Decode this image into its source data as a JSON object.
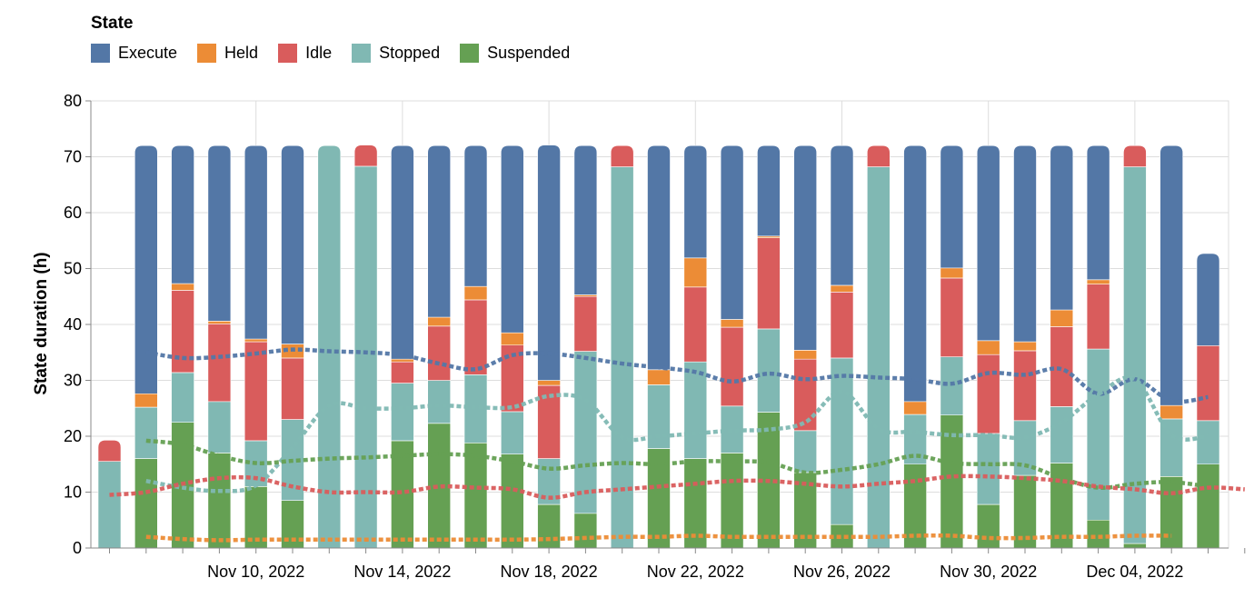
{
  "legend": {
    "title": "State",
    "items": [
      {
        "label": "Execute",
        "color": "#5377a6"
      },
      {
        "label": "Held",
        "color": "#ec8c36"
      },
      {
        "label": "Idle",
        "color": "#d95c5c"
      },
      {
        "label": "Stopped",
        "color": "#80b8b3"
      },
      {
        "label": "Suspended",
        "color": "#65a053"
      }
    ]
  },
  "chart_data": {
    "type": "bar",
    "stacked": true,
    "ylabel": "State duration (h)",
    "xlabel": "",
    "ylim": [
      0,
      80
    ],
    "yticks": [
      0,
      10,
      20,
      30,
      40,
      50,
      60,
      70,
      80
    ],
    "grid": true,
    "legend_position": "top-left",
    "x_tick_labels": [
      "Nov 10, 2022",
      "Nov 14, 2022",
      "Nov 18, 2022",
      "Nov 22, 2022",
      "Nov 26, 2022",
      "Nov 30, 2022",
      "Dec 04, 2022"
    ],
    "x_tick_dates": [
      "2022-11-10",
      "2022-11-14",
      "2022-11-18",
      "2022-11-22",
      "2022-11-26",
      "2022-11-30",
      "2022-12-04"
    ],
    "categories": [
      "2022-11-06",
      "2022-11-07",
      "2022-11-08",
      "2022-11-09",
      "2022-11-10",
      "2022-11-11",
      "2022-11-12",
      "2022-11-13",
      "2022-11-14",
      "2022-11-15",
      "2022-11-16",
      "2022-11-17",
      "2022-11-18",
      "2022-11-19",
      "2022-11-20",
      "2022-11-21",
      "2022-11-22",
      "2022-11-23",
      "2022-11-24",
      "2022-11-25",
      "2022-11-26",
      "2022-11-27",
      "2022-11-28",
      "2022-11-29",
      "2022-11-30",
      "2022-12-01",
      "2022-12-02",
      "2022-12-03",
      "2022-12-04",
      "2022-12-05",
      "2022-12-06",
      "2022-12-07"
    ],
    "series": [
      {
        "name": "Suspended",
        "color": "#65a053",
        "values": [
          0,
          16,
          22.5,
          17,
          11,
          8.5,
          0,
          0,
          19.2,
          22.3,
          18.8,
          16.8,
          7.8,
          6.2,
          0,
          17.8,
          16,
          17,
          24.3,
          13.5,
          4.2,
          0,
          15,
          23.8,
          7.8,
          13,
          15.2,
          5,
          0.8,
          12.8,
          15,
          0
        ]
      },
      {
        "name": "Stopped",
        "color": "#80b8b3",
        "values": [
          15.5,
          9.2,
          8.9,
          9.2,
          8.2,
          14.5,
          72,
          68.3,
          10.3,
          7.7,
          12.2,
          7.6,
          8.2,
          29,
          68.2,
          11.4,
          17.3,
          8.4,
          14.9,
          7.5,
          29.8,
          68.2,
          8.9,
          10.4,
          12.7,
          9.8,
          10.1,
          30.6,
          67.4,
          10.3,
          7.8,
          0
        ]
      },
      {
        "name": "Idle",
        "color": "#d95c5c",
        "values": [
          3.8,
          0,
          14.7,
          13.9,
          17.7,
          11,
          0,
          3.8,
          3.8,
          9.7,
          13.4,
          11.9,
          13.1,
          9.8,
          3.8,
          0,
          13.4,
          14.1,
          16.3,
          12.8,
          11.8,
          3.8,
          0,
          14.1,
          14.1,
          12.5,
          14.3,
          11.6,
          3.8,
          0,
          13.4,
          0
        ]
      },
      {
        "name": "Held",
        "color": "#ec8c36",
        "values": [
          0,
          2.4,
          1.2,
          0.5,
          0.5,
          2.5,
          0,
          0,
          0.5,
          1.6,
          2.4,
          2.2,
          0.9,
          0.3,
          0,
          2.7,
          5.2,
          1.4,
          0.3,
          1.6,
          1.2,
          0,
          2.3,
          1.8,
          2.5,
          1.6,
          3,
          0.8,
          0,
          2.4,
          0,
          0
        ]
      },
      {
        "name": "Execute",
        "color": "#5377a6",
        "values": [
          0,
          44.4,
          24.7,
          31.4,
          34.6,
          35.5,
          0,
          0,
          38.2,
          30.7,
          25.2,
          33.5,
          42.1,
          26.7,
          0,
          40.1,
          20.1,
          31.1,
          16.2,
          36.6,
          25,
          0,
          45.8,
          21.9,
          34.9,
          35.1,
          29.4,
          24,
          0,
          46.5,
          16.5,
          0
        ]
      }
    ],
    "trend_lines": [
      {
        "name": "Execute",
        "color": "#5377a6",
        "x": [
          "2022-11-07",
          "2022-11-08",
          "2022-11-09",
          "2022-11-10",
          "2022-11-11",
          "2022-11-12",
          "2022-11-13",
          "2022-11-14",
          "2022-11-15",
          "2022-11-16",
          "2022-11-17",
          "2022-11-18",
          "2022-11-19",
          "2022-11-20",
          "2022-11-21",
          "2022-11-22",
          "2022-11-23",
          "2022-11-24",
          "2022-11-25",
          "2022-11-26",
          "2022-11-27",
          "2022-11-28",
          "2022-11-29",
          "2022-11-30",
          "2022-12-01",
          "2022-12-02",
          "2022-12-03",
          "2022-12-04",
          "2022-12-05",
          "2022-12-06"
        ],
        "values": [
          35,
          34,
          34.2,
          34.8,
          35.5,
          35.2,
          35,
          34.5,
          33,
          32,
          34.5,
          34.8,
          34,
          33,
          32.3,
          31.5,
          29.8,
          31.2,
          30.2,
          30.8,
          30.5,
          30.2,
          29.4,
          31.3,
          31,
          32,
          27.6,
          30.2,
          26.3,
          27
        ]
      },
      {
        "name": "Stopped",
        "color": "#80b8b3",
        "x": [
          "2022-11-07",
          "2022-11-08",
          "2022-11-09",
          "2022-11-10",
          "2022-11-11",
          "2022-11-12",
          "2022-11-13",
          "2022-11-14",
          "2022-11-15",
          "2022-11-16",
          "2022-11-17",
          "2022-11-18",
          "2022-11-19",
          "2022-11-20",
          "2022-11-21",
          "2022-11-22",
          "2022-11-23",
          "2022-11-24",
          "2022-11-25",
          "2022-11-26",
          "2022-11-27",
          "2022-11-28",
          "2022-11-29",
          "2022-11-30",
          "2022-12-01",
          "2022-12-02",
          "2022-12-03",
          "2022-12-04",
          "2022-12-05",
          "2022-12-06"
        ],
        "values": [
          12,
          10.8,
          10.2,
          11.2,
          18,
          25.5,
          25,
          25,
          25.5,
          25.2,
          25.2,
          27.2,
          26.5,
          19.8,
          20,
          20.5,
          21,
          21.2,
          22.5,
          28,
          21.3,
          20.8,
          20.2,
          20.2,
          19.8,
          22.5,
          27.5,
          30.2,
          20.2,
          20
        ]
      },
      {
        "name": "Suspended",
        "color": "#65a053",
        "x": [
          "2022-11-07",
          "2022-11-08",
          "2022-11-09",
          "2022-11-10",
          "2022-11-11",
          "2022-11-12",
          "2022-11-13",
          "2022-11-14",
          "2022-11-15",
          "2022-11-16",
          "2022-11-17",
          "2022-11-18",
          "2022-11-19",
          "2022-11-20",
          "2022-11-21",
          "2022-11-22",
          "2022-11-23",
          "2022-11-24",
          "2022-11-25",
          "2022-11-26",
          "2022-11-27",
          "2022-11-28",
          "2022-11-29",
          "2022-11-30",
          "2022-12-01",
          "2022-12-02",
          "2022-12-03",
          "2022-12-04",
          "2022-12-05",
          "2022-12-06"
        ],
        "values": [
          19.2,
          18.5,
          16.5,
          15.2,
          15.6,
          16,
          16.2,
          16.5,
          16.8,
          16.5,
          15.5,
          14.2,
          14.8,
          15.2,
          15,
          15.5,
          15.5,
          15.3,
          13.5,
          14,
          15,
          16.5,
          15.2,
          15,
          14.8,
          12.5,
          10.8,
          11.5,
          11.8,
          11
        ]
      },
      {
        "name": "Idle",
        "color": "#d95c5c",
        "x": [
          "2022-11-06",
          "2022-11-07",
          "2022-11-08",
          "2022-11-09",
          "2022-11-10",
          "2022-11-11",
          "2022-11-12",
          "2022-11-13",
          "2022-11-14",
          "2022-11-15",
          "2022-11-16",
          "2022-11-17",
          "2022-11-18",
          "2022-11-19",
          "2022-11-20",
          "2022-11-21",
          "2022-11-22",
          "2022-11-23",
          "2022-11-24",
          "2022-11-25",
          "2022-11-26",
          "2022-11-27",
          "2022-11-28",
          "2022-11-29",
          "2022-11-30",
          "2022-12-01",
          "2022-12-02",
          "2022-12-03",
          "2022-12-04",
          "2022-12-05",
          "2022-12-06",
          "2022-12-07"
        ],
        "values": [
          9.5,
          10,
          11.5,
          12.5,
          12.5,
          11,
          10,
          10,
          10,
          11,
          10.8,
          10.5,
          9,
          10,
          10.5,
          11,
          11.5,
          12,
          12,
          11.5,
          11,
          11.5,
          12,
          12.8,
          12.8,
          12.5,
          12,
          11,
          10.5,
          9.8,
          10.8,
          10.5
        ]
      },
      {
        "name": "Held",
        "color": "#ec8c36",
        "x": [
          "2022-11-07",
          "2022-11-08",
          "2022-11-09",
          "2022-11-10",
          "2022-11-11",
          "2022-11-12",
          "2022-11-13",
          "2022-11-14",
          "2022-11-15",
          "2022-11-16",
          "2022-11-17",
          "2022-11-18",
          "2022-11-19",
          "2022-11-20",
          "2022-11-21",
          "2022-11-22",
          "2022-11-23",
          "2022-11-24",
          "2022-11-25",
          "2022-11-26",
          "2022-11-27",
          "2022-11-28",
          "2022-11-29",
          "2022-11-30",
          "2022-12-01",
          "2022-12-02",
          "2022-12-03",
          "2022-12-04",
          "2022-12-05"
        ],
        "values": [
          2,
          1.6,
          1.4,
          1.5,
          1.5,
          1.5,
          1.5,
          1.5,
          1.5,
          1.5,
          1.5,
          1.6,
          1.8,
          2,
          2,
          2.2,
          2,
          2,
          2,
          2,
          2,
          2.2,
          2.2,
          1.8,
          1.8,
          2,
          2,
          2.2,
          2.2
        ]
      }
    ]
  }
}
